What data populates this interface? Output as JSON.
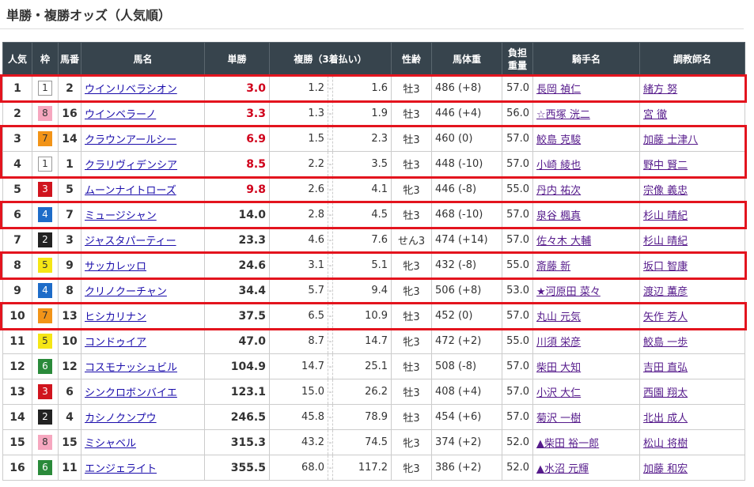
{
  "title": "単勝・複勝オッズ（人気順）",
  "headers": {
    "pop": "人気",
    "waku": "枠",
    "num": "馬番",
    "name": "馬名",
    "win": "単勝",
    "place": "複勝（3着払い）",
    "sexage": "性齢",
    "weight": "馬体重",
    "load": "負担重量",
    "jockey": "騎手名",
    "trainer": "調教師名"
  },
  "waku_colors": {
    "1": "#ffffff",
    "2": "#222222",
    "3": "#d0141e",
    "4": "#1e6cc8",
    "5": "#f5e615",
    "6": "#2a8a3a",
    "7": "#f29418",
    "8": "#f6a7bf"
  },
  "highlight_color": "#e3141e",
  "rows": [
    {
      "pop": "1",
      "waku": "1",
      "num": "2",
      "name": "ウインリベラシオン",
      "win": "3.0",
      "pl": "1.2",
      "ph": "1.6",
      "sexage": "牡3",
      "weight": "486 (+8)",
      "load": "57.0",
      "jockey": "長岡 禎仁",
      "trainer": "緒方 努",
      "highlight": true
    },
    {
      "pop": "2",
      "waku": "8",
      "num": "16",
      "name": "ウインベラーノ",
      "win": "3.3",
      "pl": "1.3",
      "ph": "1.9",
      "sexage": "牡3",
      "weight": "446 (+4)",
      "load": "56.0",
      "jockey": "☆西塚 洸二",
      "trainer": "宮 徹"
    },
    {
      "pop": "3",
      "waku": "7",
      "num": "14",
      "name": "クラウンアールシー",
      "win": "6.9",
      "pl": "1.5",
      "ph": "2.3",
      "sexage": "牡3",
      "weight": "460 (0)",
      "load": "57.0",
      "jockey": "鮫島 克駿",
      "trainer": "加藤 士津八",
      "highlight": true
    },
    {
      "pop": "4",
      "waku": "1",
      "num": "1",
      "name": "クラリヴィデンシア",
      "win": "8.5",
      "pl": "2.2",
      "ph": "3.5",
      "sexage": "牡3",
      "weight": "448 (-10)",
      "load": "57.0",
      "jockey": "小崎 綾也",
      "trainer": "野中 賢二",
      "highlight": true
    },
    {
      "pop": "5",
      "waku": "3",
      "num": "5",
      "name": "ムーンナイトローズ",
      "win": "9.8",
      "pl": "2.6",
      "ph": "4.1",
      "sexage": "牝3",
      "weight": "446 (-8)",
      "load": "55.0",
      "jockey": "丹内 祐次",
      "trainer": "宗像 義忠"
    },
    {
      "pop": "6",
      "waku": "4",
      "num": "7",
      "name": "ミュージシャン",
      "win": "14.0",
      "pl": "2.8",
      "ph": "4.5",
      "sexage": "牡3",
      "weight": "468 (-10)",
      "load": "57.0",
      "jockey": "泉谷 楓真",
      "trainer": "杉山 晴紀",
      "highlight": true
    },
    {
      "pop": "7",
      "waku": "2",
      "num": "3",
      "name": "ジャスタパーティー",
      "win": "23.3",
      "pl": "4.6",
      "ph": "7.6",
      "sexage": "せん3",
      "weight": "474 (+14)",
      "load": "57.0",
      "jockey": "佐々木 大輔",
      "trainer": "杉山 晴紀"
    },
    {
      "pop": "8",
      "waku": "5",
      "num": "9",
      "name": "サッカレッロ",
      "win": "24.6",
      "pl": "3.1",
      "ph": "5.1",
      "sexage": "牝3",
      "weight": "432 (-8)",
      "load": "55.0",
      "jockey": "斎藤 新",
      "trainer": "坂口 智康",
      "highlight": true
    },
    {
      "pop": "9",
      "waku": "4",
      "num": "8",
      "name": "クリノクーチャン",
      "win": "34.4",
      "pl": "5.7",
      "ph": "9.4",
      "sexage": "牝3",
      "weight": "506 (+8)",
      "load": "53.0",
      "jockey": "★河原田 菜々",
      "trainer": "渡辺 薫彦"
    },
    {
      "pop": "10",
      "waku": "7",
      "num": "13",
      "name": "ヒシカリナン",
      "win": "37.5",
      "pl": "6.5",
      "ph": "10.9",
      "sexage": "牡3",
      "weight": "452 (0)",
      "load": "57.0",
      "jockey": "丸山 元気",
      "trainer": "矢作 芳人",
      "highlight": true
    },
    {
      "pop": "11",
      "waku": "5",
      "num": "10",
      "name": "コンドゥイア",
      "win": "47.0",
      "pl": "8.7",
      "ph": "14.7",
      "sexage": "牝3",
      "weight": "472 (+2)",
      "load": "55.0",
      "jockey": "川須 栄彦",
      "trainer": "鮫島 一歩"
    },
    {
      "pop": "12",
      "waku": "6",
      "num": "12",
      "name": "コスモナッシュビル",
      "win": "104.9",
      "pl": "14.7",
      "ph": "25.1",
      "sexage": "牡3",
      "weight": "508 (-8)",
      "load": "57.0",
      "jockey": "柴田 大知",
      "trainer": "吉田 直弘"
    },
    {
      "pop": "13",
      "waku": "3",
      "num": "6",
      "name": "シンクロボンバイエ",
      "win": "123.1",
      "pl": "15.0",
      "ph": "26.2",
      "sexage": "牡3",
      "weight": "408 (+4)",
      "load": "57.0",
      "jockey": "小沢 大仁",
      "trainer": "西園 翔太"
    },
    {
      "pop": "14",
      "waku": "2",
      "num": "4",
      "name": "カシノクンプウ",
      "win": "246.5",
      "pl": "45.8",
      "ph": "78.9",
      "sexage": "牡3",
      "weight": "454 (+6)",
      "load": "57.0",
      "jockey": "菊沢 一樹",
      "trainer": "北出 成人"
    },
    {
      "pop": "15",
      "waku": "8",
      "num": "15",
      "name": "ミシャベル",
      "win": "315.3",
      "pl": "43.2",
      "ph": "74.5",
      "sexage": "牝3",
      "weight": "374 (+2)",
      "load": "52.0",
      "jockey": "▲柴田 裕一郎",
      "trainer": "松山 将樹"
    },
    {
      "pop": "16",
      "waku": "6",
      "num": "11",
      "name": "エンジェライト",
      "win": "355.5",
      "pl": "68.0",
      "ph": "117.2",
      "sexage": "牝3",
      "weight": "386 (+2)",
      "load": "52.0",
      "jockey": "▲水沼 元輝",
      "trainer": "加藤 和宏"
    }
  ]
}
